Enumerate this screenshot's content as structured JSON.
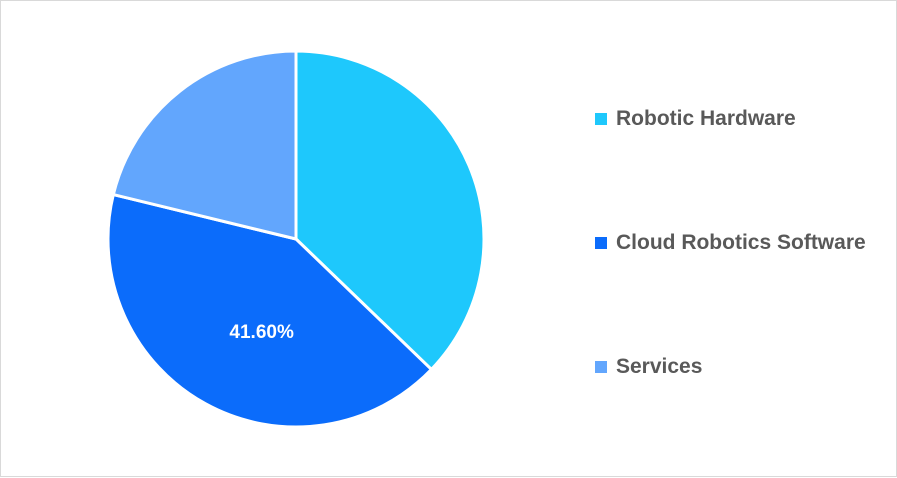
{
  "chart_data": {
    "type": "pie",
    "title": "",
    "slices": [
      {
        "label": "Robotic Hardware",
        "value": 37.2,
        "color": "#1ec8fc",
        "data_label": ""
      },
      {
        "label": "Cloud Robotics Software",
        "value": 41.6,
        "color": "#0b6cfb",
        "data_label": "41.60%"
      },
      {
        "label": "Services",
        "value": 21.2,
        "color": "#62a6fd",
        "data_label": ""
      }
    ],
    "legend_position": "right"
  }
}
